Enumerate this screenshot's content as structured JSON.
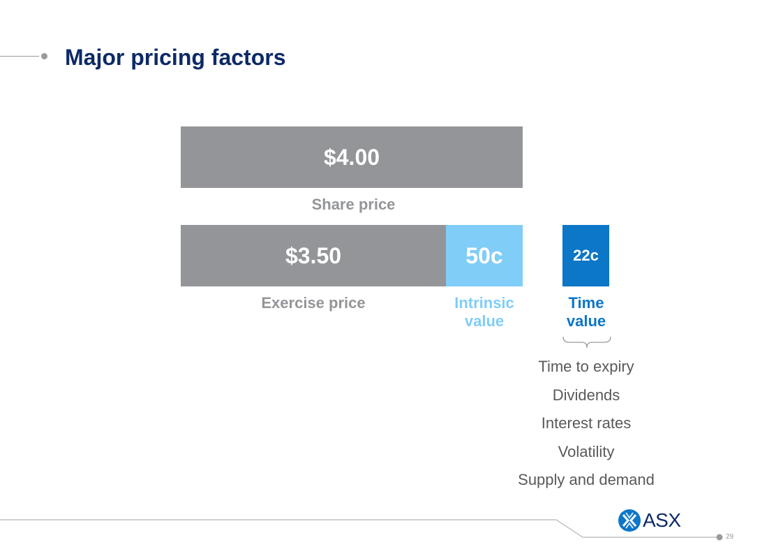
{
  "slide": {
    "title": "Major pricing factors",
    "page_number": "29"
  },
  "bars": {
    "share_price": {
      "value": "$4.00",
      "label": "Share price"
    },
    "exercise_price": {
      "value": "$3.50",
      "label": "Exercise price"
    },
    "intrinsic_value": {
      "value": "50c",
      "label": "Intrinsic value"
    },
    "time_value": {
      "value": "22c",
      "label": "Time value"
    }
  },
  "time_value_factors": [
    "Time to expiry",
    "Dividends",
    "Interest rates",
    "Volatility",
    "Supply and demand"
  ],
  "logo": {
    "text": "ASX"
  },
  "colors": {
    "title": "#0d2a66",
    "grey_bar": "#939598",
    "intrinsic": "#80cdf7",
    "time_value": "#0c76c7",
    "body_text": "#58595b"
  }
}
